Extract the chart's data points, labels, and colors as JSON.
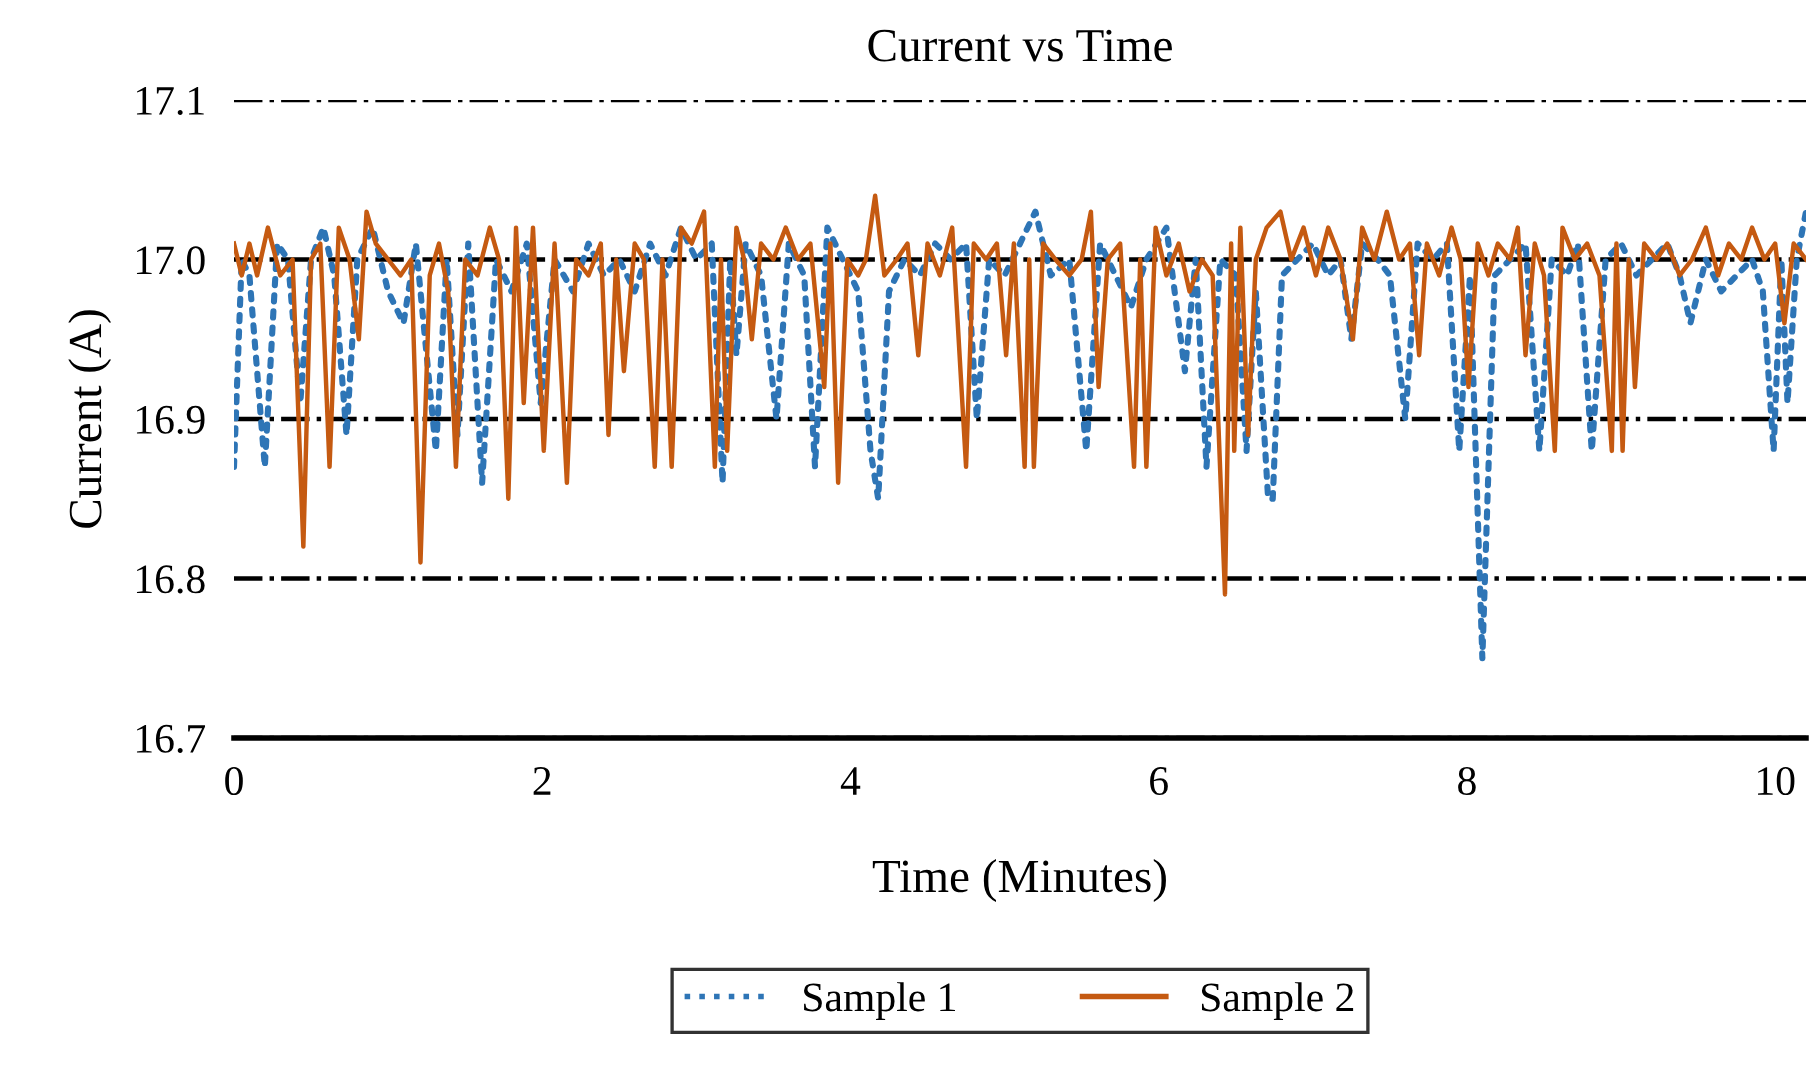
{
  "chart_data": {
    "type": "line",
    "title": "Current vs Time",
    "xlabel": "Time (Minutes)",
    "ylabel": "Current (A)",
    "xlim": [
      0,
      10.2
    ],
    "xticks": [
      0,
      2,
      4,
      6,
      8,
      10
    ],
    "ylim": [
      16.7,
      17.1
    ],
    "yticks": [
      16.7,
      16.8,
      16.9,
      {
        "value": 17,
        "label": "17.0"
      },
      17.1
    ],
    "grid": "y",
    "legend": "bottom",
    "marker": "none",
    "series": [
      {
        "name": "Sample 1",
        "color": "#2e75b6",
        "line_style": "dotted",
        "x": [
          0.0,
          0.05,
          0.1,
          0.2,
          0.28,
          0.35,
          0.43,
          0.5,
          0.58,
          0.65,
          0.73,
          0.8,
          0.9,
          1.0,
          1.1,
          1.18,
          1.31,
          1.38,
          1.45,
          1.52,
          1.61,
          1.7,
          1.8,
          1.9,
          1.99,
          2.08,
          2.2,
          2.3,
          2.4,
          2.5,
          2.6,
          2.7,
          2.8,
          2.9,
          3.0,
          3.1,
          3.17,
          3.22,
          3.26,
          3.32,
          3.42,
          3.52,
          3.6,
          3.7,
          3.77,
          3.85,
          3.95,
          4.05,
          4.13,
          4.18,
          4.25,
          4.35,
          4.45,
          4.55,
          4.65,
          4.75,
          4.82,
          4.9,
          5.0,
          5.1,
          5.2,
          5.3,
          5.42,
          5.53,
          5.62,
          5.72,
          5.82,
          5.92,
          6.05,
          6.17,
          6.24,
          6.31,
          6.4,
          6.5,
          6.57,
          6.63,
          6.71,
          6.74,
          6.8,
          6.9,
          7.0,
          7.1,
          7.18,
          7.25,
          7.32,
          7.42,
          7.5,
          7.6,
          7.68,
          7.78,
          7.87,
          7.95,
          8.02,
          8.1,
          8.18,
          8.28,
          8.38,
          8.47,
          8.55,
          8.65,
          8.72,
          8.81,
          8.9,
          9.0,
          9.1,
          9.2,
          9.3,
          9.38,
          9.45,
          9.55,
          9.65,
          9.75,
          9.85,
          9.92,
          9.99,
          10.04,
          10.08,
          10.14,
          10.2
        ],
        "values": [
          16.87,
          17.0,
          16.99,
          16.87,
          17.01,
          17.0,
          16.91,
          17.0,
          17.02,
          16.99,
          16.89,
          17.0,
          17.02,
          16.98,
          16.96,
          17.01,
          16.88,
          17.0,
          16.89,
          17.01,
          16.86,
          17.0,
          16.98,
          17.01,
          16.91,
          17.0,
          16.98,
          17.01,
          16.99,
          17.0,
          16.98,
          17.01,
          16.99,
          17.02,
          17.0,
          17.01,
          16.86,
          17.0,
          16.94,
          17.01,
          16.99,
          16.9,
          17.01,
          16.99,
          16.87,
          17.02,
          17.0,
          16.98,
          16.88,
          16.85,
          16.98,
          17.0,
          16.99,
          17.01,
          17.0,
          17.01,
          16.9,
          17.0,
          16.99,
          17.01,
          17.03,
          16.99,
          17.0,
          16.88,
          17.01,
          16.99,
          16.97,
          17.0,
          17.02,
          16.93,
          17.0,
          16.87,
          17.0,
          16.99,
          16.88,
          16.98,
          16.85,
          16.85,
          16.99,
          17.0,
          17.01,
          16.99,
          17.0,
          16.95,
          17.01,
          17.0,
          16.99,
          16.9,
          17.01,
          17.0,
          17.01,
          16.88,
          16.99,
          16.75,
          16.99,
          17.0,
          17.01,
          16.88,
          17.0,
          16.99,
          17.01,
          16.88,
          17.0,
          17.01,
          16.99,
          17.0,
          17.01,
          16.99,
          16.96,
          17.0,
          16.98,
          16.99,
          17.0,
          16.98,
          16.88,
          17.0,
          16.91,
          17.0,
          17.03
        ]
      },
      {
        "name": "Sample 2",
        "color": "#c55a11",
        "line_style": "solid",
        "x": [
          0.0,
          0.05,
          0.1,
          0.15,
          0.22,
          0.3,
          0.38,
          0.45,
          0.5,
          0.56,
          0.62,
          0.68,
          0.75,
          0.81,
          0.86,
          0.92,
          1.0,
          1.08,
          1.15,
          1.21,
          1.27,
          1.33,
          1.39,
          1.44,
          1.5,
          1.58,
          1.66,
          1.72,
          1.78,
          1.83,
          1.88,
          1.94,
          2.01,
          2.08,
          2.16,
          2.22,
          2.3,
          2.38,
          2.43,
          2.48,
          2.53,
          2.6,
          2.66,
          2.73,
          2.78,
          2.84,
          2.9,
          2.97,
          3.05,
          3.12,
          3.16,
          3.2,
          3.26,
          3.31,
          3.36,
          3.42,
          3.5,
          3.58,
          3.66,
          3.74,
          3.83,
          3.87,
          3.92,
          3.98,
          4.05,
          4.1,
          4.16,
          4.22,
          4.3,
          4.37,
          4.44,
          4.5,
          4.58,
          4.66,
          4.75,
          4.8,
          4.88,
          4.95,
          5.01,
          5.06,
          5.13,
          5.16,
          5.19,
          5.25,
          5.33,
          5.42,
          5.5,
          5.56,
          5.61,
          5.67,
          5.75,
          5.84,
          5.88,
          5.92,
          5.98,
          6.05,
          6.13,
          6.2,
          6.28,
          6.35,
          6.43,
          6.47,
          6.49,
          6.53,
          6.58,
          6.63,
          6.7,
          6.79,
          6.86,
          6.94,
          7.02,
          7.1,
          7.18,
          7.26,
          7.32,
          7.4,
          7.48,
          7.56,
          7.63,
          7.69,
          7.74,
          7.82,
          7.9,
          7.96,
          8.01,
          8.07,
          8.14,
          8.2,
          8.28,
          8.33,
          8.38,
          8.44,
          8.5,
          8.57,
          8.62,
          8.7,
          8.78,
          8.86,
          8.94,
          8.97,
          9.01,
          9.05,
          9.09,
          9.15,
          9.23,
          9.3,
          9.38,
          9.46,
          9.55,
          9.63,
          9.7,
          9.78,
          9.85,
          9.93,
          10.0,
          10.06,
          10.12,
          10.2
        ],
        "values": [
          17.01,
          16.99,
          17.01,
          16.99,
          17.02,
          16.99,
          17.0,
          16.82,
          17.0,
          17.01,
          16.87,
          17.02,
          17.0,
          16.95,
          17.03,
          17.01,
          17.0,
          16.99,
          17.0,
          16.81,
          16.99,
          17.01,
          16.98,
          16.87,
          17.0,
          16.99,
          17.02,
          17.0,
          16.85,
          17.02,
          16.91,
          17.02,
          16.88,
          17.01,
          16.86,
          17.0,
          16.99,
          17.01,
          16.89,
          17.0,
          16.93,
          17.01,
          17.0,
          16.87,
          17.0,
          16.87,
          17.02,
          17.01,
          17.03,
          16.87,
          17.0,
          16.88,
          17.02,
          17.0,
          16.95,
          17.01,
          17.0,
          17.02,
          17.0,
          17.01,
          16.92,
          17.01,
          16.86,
          17.0,
          16.99,
          17.0,
          17.04,
          16.99,
          17.0,
          17.01,
          16.94,
          17.01,
          16.99,
          17.02,
          16.87,
          17.01,
          17.0,
          17.01,
          16.94,
          17.01,
          16.87,
          17.0,
          16.87,
          17.01,
          17.0,
          16.99,
          17.0,
          17.03,
          16.92,
          17.0,
          17.01,
          16.87,
          17.0,
          16.87,
          17.02,
          16.99,
          17.01,
          16.98,
          17.0,
          16.99,
          16.79,
          17.01,
          16.88,
          17.02,
          16.89,
          17.0,
          17.02,
          17.03,
          17.0,
          17.02,
          16.99,
          17.02,
          17.0,
          16.95,
          17.02,
          17.0,
          17.03,
          17.0,
          17.01,
          16.94,
          17.01,
          16.99,
          17.02,
          17.0,
          16.92,
          17.01,
          16.99,
          17.01,
          17.0,
          17.02,
          16.94,
          17.01,
          16.99,
          16.88,
          17.02,
          17.0,
          17.01,
          16.99,
          16.88,
          17.01,
          16.88,
          17.0,
          16.92,
          17.01,
          17.0,
          17.01,
          16.99,
          17.0,
          17.02,
          16.99,
          17.01,
          17.0,
          17.02,
          17.0,
          17.01,
          16.96,
          17.01,
          17.0
        ]
      }
    ]
  }
}
